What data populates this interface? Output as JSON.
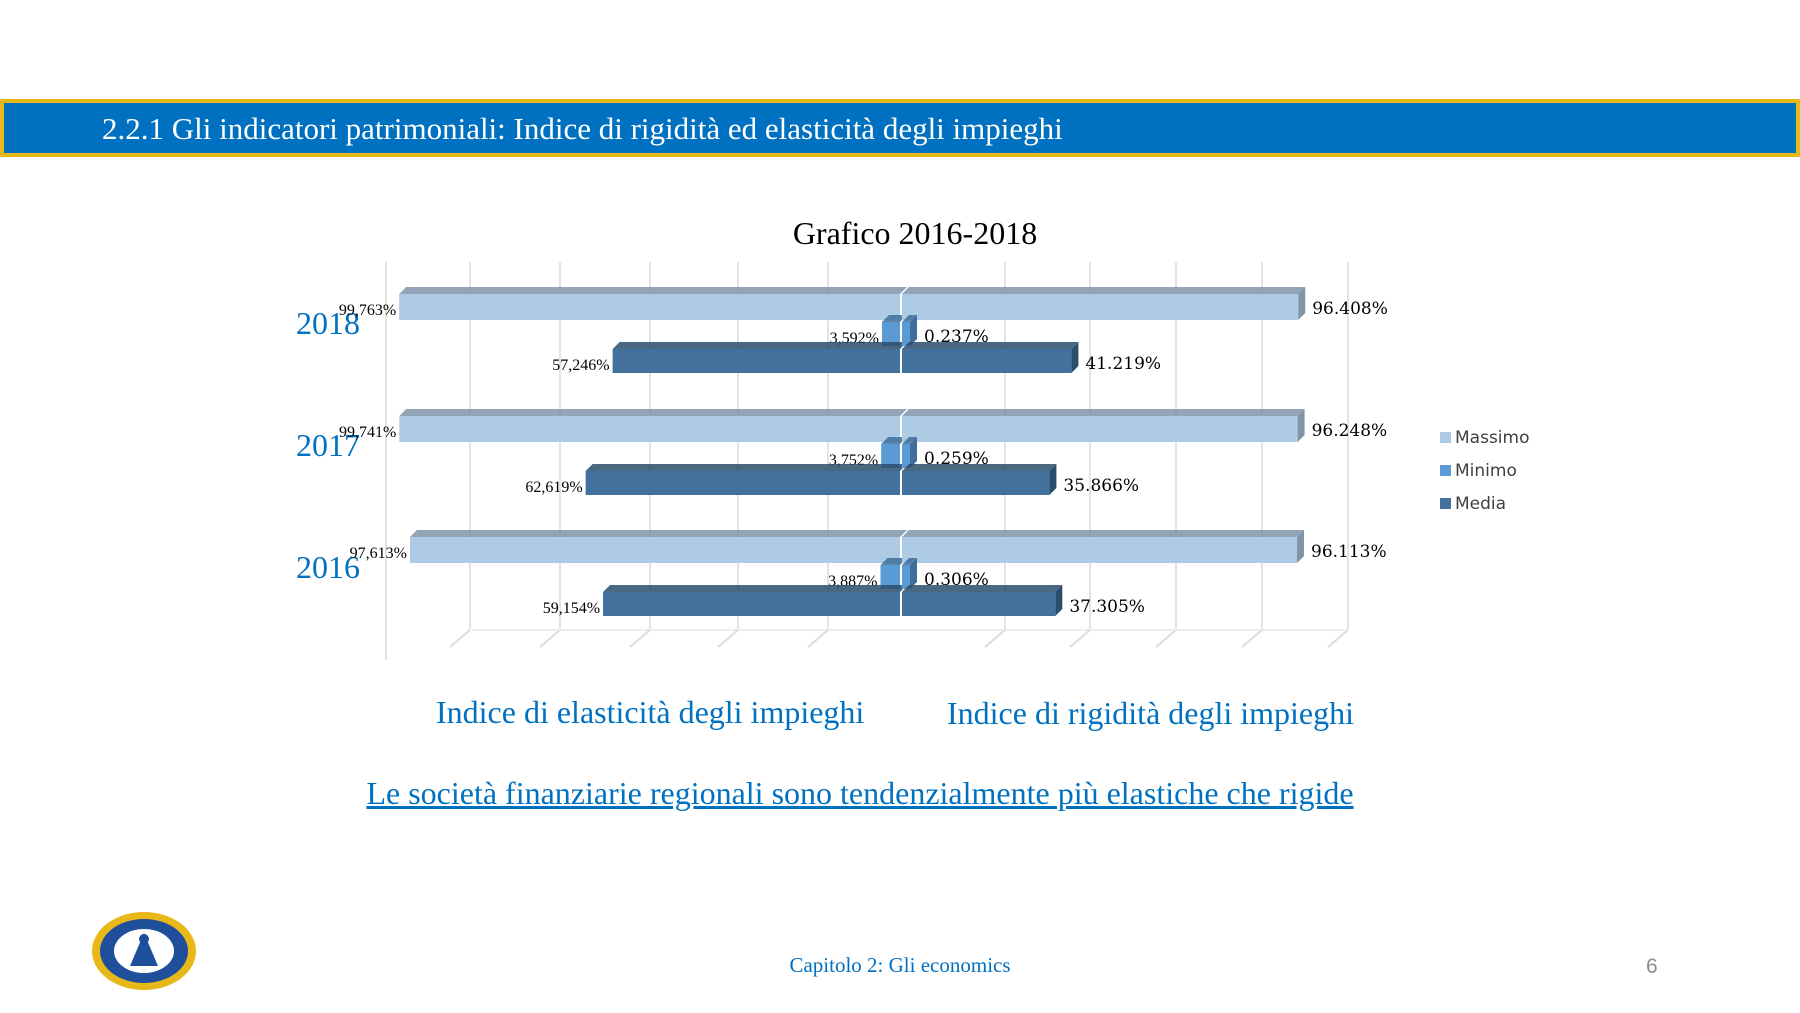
{
  "header": {
    "title": "2.2.1 Gli indicatori patrimoniali: Indice di rigidità ed elasticità degli impieghi"
  },
  "colors": {
    "header_bg": "#0070c0",
    "header_border": "#e8b818",
    "massimo": "#aecbe6",
    "minimo": "#5b9bd5",
    "media": "#41719c",
    "text_blue": "#0070c0"
  },
  "chart_data": {
    "type": "bar",
    "title": "Grafico 2016-2018",
    "categories": [
      "2018",
      "2017",
      "2016"
    ],
    "left_axis_label": "Indice di elasticità degli impieghi",
    "right_axis_label": "Indice di rigidità degli impieghi",
    "left_series": [
      {
        "name": "Massimo",
        "values": [
          99.763,
          99.741,
          97.613
        ],
        "labels": [
          "99,763%",
          "99,741%",
          "97,613%"
        ]
      },
      {
        "name": "Minimo",
        "values": [
          3.592,
          3.752,
          3.887
        ],
        "labels": [
          "3,592%",
          "3,752%",
          "3,887%"
        ]
      },
      {
        "name": "Media",
        "values": [
          57.246,
          62.619,
          59.154
        ],
        "labels": [
          "57,246%",
          "62,619%",
          "59,154%"
        ]
      }
    ],
    "right_series": [
      {
        "name": "Massimo",
        "values": [
          96.408,
          96.248,
          96.113
        ],
        "labels": [
          "96.408%",
          "96.248%",
          "96.113%"
        ]
      },
      {
        "name": "Minimo",
        "values": [
          0.237,
          0.259,
          0.306
        ],
        "labels": [
          "0.237%",
          "0.259%",
          "0.306%"
        ]
      },
      {
        "name": "Media",
        "values": [
          41.219,
          35.866,
          37.305
        ],
        "labels": [
          "41.219%",
          "35.866%",
          "37.305%"
        ]
      }
    ],
    "legend": [
      "Massimo",
      "Minimo",
      "Media"
    ],
    "legend_position": "right",
    "grid": true
  },
  "conclusion": "Le società finanziarie regionali sono tendenzialmente più elastiche che rigide",
  "footer": {
    "chapter": "Capitolo 2: Gli economics",
    "page_number": "6"
  },
  "icons": {
    "logo": "university-seal-icon"
  }
}
